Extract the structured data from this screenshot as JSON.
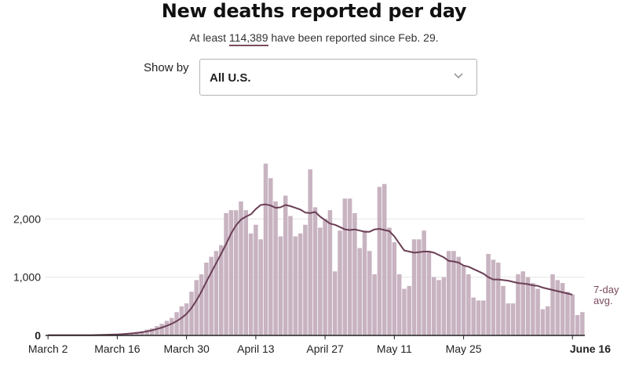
{
  "header": {
    "title": "New deaths reported per day",
    "subtitle_prefix": "At least ",
    "subtitle_number": "114,389",
    "subtitle_suffix": " have been reported since Feb. 29."
  },
  "controls": {
    "show_by_label": "Show by",
    "selected_option": "All U.S.",
    "dropdown_icon": "chevron-down-icon"
  },
  "colors": {
    "bar": "#c8b3c1",
    "bar_edge": "#ffffff",
    "avg_line": "#6b3f55",
    "axis": "#222222",
    "grid": "#e6e6e6",
    "avg_label": "#7b4a5e"
  },
  "chart_data": {
    "type": "bar",
    "title": "New deaths reported per day",
    "xlabel": "",
    "ylabel": "",
    "ylim": [
      0,
      3000
    ],
    "yticks": [
      0,
      1000,
      2000
    ],
    "ytick_labels": [
      "0",
      "1,000",
      "2,000"
    ],
    "xtick_labels": [
      "March 2",
      "March 16",
      "March 30",
      "April 13",
      "April 27",
      "May 11",
      "May 25",
      "June 16"
    ],
    "xtick_indices": [
      0,
      14,
      28,
      42,
      56,
      70,
      84,
      106
    ],
    "grid": true,
    "series": [
      {
        "name": "New deaths",
        "type": "bar",
        "start_date": "March 2",
        "values": [
          5,
          5,
          5,
          5,
          5,
          5,
          5,
          5,
          5,
          5,
          10,
          15,
          15,
          20,
          25,
          30,
          40,
          50,
          60,
          70,
          100,
          120,
          160,
          200,
          250,
          300,
          400,
          500,
          550,
          750,
          950,
          1050,
          1250,
          1350,
          1450,
          1550,
          2100,
          2150,
          2150,
          2300,
          2150,
          1750,
          1900,
          1650,
          2950,
          2700,
          2300,
          1700,
          2400,
          2050,
          1700,
          1750,
          1900,
          2850,
          2200,
          1850,
          2000,
          2150,
          1100,
          1800,
          2350,
          2350,
          2100,
          1500,
          1800,
          1450,
          1050,
          2550,
          2600,
          1850,
          1600,
          1050,
          800,
          850,
          1650,
          1650,
          1800,
          1450,
          1000,
          950,
          1000,
          1450,
          1450,
          1350,
          1200,
          1050,
          650,
          600,
          600,
          1400,
          1300,
          1250,
          850,
          550,
          550,
          1050,
          1100,
          1000,
          900,
          800,
          450,
          500,
          1050,
          950,
          900,
          750,
          700,
          350,
          400
        ]
      },
      {
        "name": "7-day avg.",
        "type": "line",
        "start_date": "March 2",
        "values": [
          5,
          5,
          5,
          5,
          5,
          5,
          5,
          5,
          5,
          5,
          8,
          10,
          12,
          15,
          18,
          22,
          28,
          35,
          44,
          55,
          70,
          88,
          110,
          135,
          165,
          200,
          245,
          300,
          370,
          470,
          600,
          750,
          920,
          1080,
          1240,
          1400,
          1570,
          1750,
          1890,
          1990,
          2040,
          2080,
          2170,
          2240,
          2250,
          2230,
          2190,
          2200,
          2240,
          2220,
          2190,
          2160,
          2110,
          2100,
          2120,
          2040,
          1980,
          1920,
          1900,
          1860,
          1820,
          1810,
          1820,
          1800,
          1780,
          1780,
          1820,
          1830,
          1810,
          1790,
          1700,
          1580,
          1460,
          1440,
          1420,
          1430,
          1440,
          1440,
          1420,
          1380,
          1340,
          1280,
          1270,
          1250,
          1200,
          1180,
          1140,
          1100,
          1060,
          1000,
          960,
          960,
          950,
          940,
          920,
          900,
          890,
          880,
          860,
          850,
          820,
          800,
          780,
          760,
          740,
          720,
          700
        ]
      }
    ],
    "annotations": [
      {
        "text_line1": "7-day",
        "text_line2": "avg.",
        "target": "7-day avg."
      }
    ]
  }
}
